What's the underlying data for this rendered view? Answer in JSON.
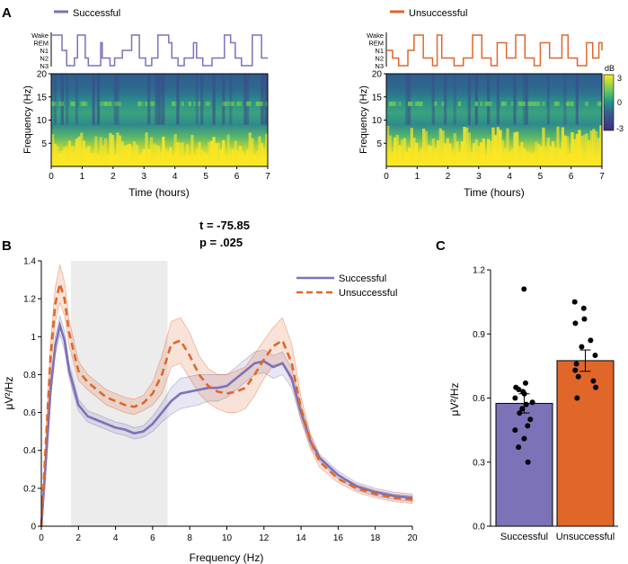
{
  "figure": {
    "panelA": {
      "letter": "A",
      "legend_successful": "Successful",
      "legend_unsuccessful": "Unsuccessful",
      "stage_labels": [
        "Wake",
        "REM",
        "N1",
        "N2",
        "N3"
      ],
      "ylabel": "Frequency (Hz)",
      "xlabel": "Time (hours)",
      "x_ticks": [
        "0",
        "1",
        "2",
        "3",
        "4",
        "5",
        "6",
        "7"
      ],
      "y_ticks": [
        "5",
        "10",
        "15",
        "20"
      ],
      "colorbar_title": "dB",
      "colorbar_ticks": [
        "3",
        "0",
        "-3"
      ]
    },
    "panelB": {
      "letter": "B",
      "stat_t": "t  = -75.85",
      "stat_p": "p = .025",
      "legend_successful": "Successful",
      "legend_unsuccessful": "Unsuccessful",
      "xlabel": "Frequency (Hz)",
      "ylabel": "μV²/Hz",
      "x_ticks": [
        "0",
        "2",
        "4",
        "6",
        "8",
        "10",
        "12",
        "14",
        "16",
        "18",
        "20"
      ],
      "y_ticks": [
        "0",
        "0.2",
        "0.4",
        "0.6",
        "0.8",
        "1",
        "1.2",
        "1.4"
      ]
    },
    "panelC": {
      "letter": "C",
      "ylabel": "μV²/Hz",
      "y_ticks": [
        "0.0",
        "0.3",
        "0.6",
        "0.9",
        "1.2"
      ],
      "x_labels": [
        "Successful",
        "Unsuccessful"
      ]
    }
  },
  "colors": {
    "successful": "#7b72b8",
    "unsuccessful": "#e0662a",
    "shade": "#ececec"
  },
  "chart_data": [
    {
      "type": "line",
      "id": "hypnogram-successful",
      "stages": [
        "Wake",
        "REM",
        "N1",
        "N2",
        "N3"
      ],
      "t": [
        0,
        0.35,
        0.5,
        0.75,
        0.85,
        1.1,
        1.2,
        1.6,
        1.65,
        1.9,
        2.05,
        2.3,
        2.6,
        2.85,
        3.05,
        3.25,
        3.45,
        3.8,
        3.9,
        4.1,
        4.3,
        4.6,
        4.7,
        4.9,
        5.2,
        5.6,
        5.8,
        5.95,
        6.15,
        6.5,
        6.8,
        7.0
      ],
      "stage_index": [
        0,
        2,
        4,
        3,
        0,
        3,
        4,
        1,
        3,
        4,
        3,
        2,
        0,
        3,
        4,
        3,
        0,
        1,
        3,
        4,
        3,
        1,
        3,
        4,
        3,
        0,
        1,
        3,
        4,
        0,
        3,
        3
      ]
    },
    {
      "type": "line",
      "id": "hypnogram-unsuccessful",
      "stages": [
        "Wake",
        "REM",
        "N1",
        "N2",
        "N3"
      ],
      "t": [
        0,
        0.2,
        0.4,
        0.7,
        0.9,
        1.2,
        1.5,
        1.65,
        1.8,
        2.2,
        2.5,
        2.8,
        3.1,
        3.4,
        3.6,
        3.9,
        4.2,
        4.5,
        4.8,
        5.0,
        5.3,
        5.7,
        5.9,
        6.2,
        6.5,
        6.7,
        6.9,
        7.0
      ],
      "stage_index": [
        2,
        3,
        4,
        2,
        0,
        3,
        4,
        0,
        3,
        4,
        3,
        0,
        3,
        4,
        1,
        3,
        0,
        3,
        4,
        1,
        3,
        0,
        3,
        4,
        1,
        3,
        1,
        2
      ]
    },
    {
      "type": "heatmap",
      "id": "spectrogram-successful",
      "xlabel": "Time (hours)",
      "ylabel": "Frequency (Hz)",
      "xlim": [
        0,
        7
      ],
      "ylim": [
        0,
        20
      ],
      "zlim": [
        -3,
        3
      ],
      "z_unit": "dB"
    },
    {
      "type": "heatmap",
      "id": "spectrogram-unsuccessful",
      "xlabel": "Time (hours)",
      "ylabel": "Frequency (Hz)",
      "xlim": [
        0,
        7
      ],
      "ylim": [
        0,
        20
      ],
      "zlim": [
        -3,
        3
      ],
      "z_unit": "dB"
    },
    {
      "type": "line",
      "id": "power-spectrum",
      "xlabel": "Frequency (Hz)",
      "ylabel": "μV²/Hz",
      "xlim": [
        0,
        20
      ],
      "ylim": [
        0,
        1.4
      ],
      "shaded_band_hz": [
        1.6,
        6.8
      ],
      "x": [
        0,
        0.25,
        0.5,
        0.75,
        1,
        1.25,
        1.5,
        2,
        2.5,
        3,
        3.5,
        4,
        4.5,
        5,
        5.5,
        6,
        6.5,
        7,
        7.5,
        8,
        8.5,
        9,
        9.5,
        10,
        10.5,
        11,
        11.5,
        12,
        12.5,
        13,
        13.5,
        14,
        14.5,
        15,
        16,
        17,
        18,
        19,
        20
      ],
      "series": [
        {
          "name": "Successful",
          "values": [
            0.0,
            0.35,
            0.72,
            0.95,
            1.06,
            0.98,
            0.82,
            0.64,
            0.58,
            0.56,
            0.54,
            0.52,
            0.51,
            0.49,
            0.5,
            0.54,
            0.6,
            0.66,
            0.7,
            0.71,
            0.72,
            0.73,
            0.73,
            0.74,
            0.78,
            0.82,
            0.86,
            0.87,
            0.84,
            0.86,
            0.78,
            0.6,
            0.45,
            0.36,
            0.27,
            0.21,
            0.18,
            0.16,
            0.15
          ],
          "ci": [
            0.0,
            0.03,
            0.05,
            0.05,
            0.05,
            0.05,
            0.04,
            0.03,
            0.03,
            0.03,
            0.03,
            0.03,
            0.03,
            0.03,
            0.03,
            0.04,
            0.05,
            0.07,
            0.08,
            0.08,
            0.08,
            0.07,
            0.07,
            0.06,
            0.06,
            0.06,
            0.06,
            0.06,
            0.06,
            0.06,
            0.05,
            0.04,
            0.03,
            0.02,
            0.02,
            0.02,
            0.02,
            0.02,
            0.02
          ]
        },
        {
          "name": "Unsuccessful",
          "values": [
            0.0,
            0.45,
            0.9,
            1.17,
            1.28,
            1.2,
            1.02,
            0.82,
            0.76,
            0.72,
            0.68,
            0.66,
            0.64,
            0.63,
            0.65,
            0.7,
            0.8,
            0.96,
            0.98,
            0.9,
            0.8,
            0.74,
            0.71,
            0.7,
            0.71,
            0.73,
            0.8,
            0.88,
            0.95,
            0.98,
            0.86,
            0.62,
            0.45,
            0.34,
            0.25,
            0.2,
            0.17,
            0.15,
            0.14
          ],
          "ci": [
            0.0,
            0.04,
            0.08,
            0.09,
            0.1,
            0.09,
            0.07,
            0.05,
            0.04,
            0.04,
            0.04,
            0.04,
            0.04,
            0.04,
            0.04,
            0.06,
            0.1,
            0.12,
            0.12,
            0.12,
            0.1,
            0.09,
            0.09,
            0.1,
            0.11,
            0.11,
            0.11,
            0.1,
            0.1,
            0.12,
            0.1,
            0.06,
            0.04,
            0.03,
            0.02,
            0.02,
            0.02,
            0.02,
            0.02
          ]
        }
      ]
    },
    {
      "type": "bar",
      "id": "group-means",
      "ylabel": "μV²/Hz",
      "ylim": [
        0,
        1.2
      ],
      "categories": [
        "Successful",
        "Unsuccessful"
      ],
      "values": [
        0.575,
        0.775
      ],
      "sem": [
        0.045,
        0.05
      ],
      "points": [
        [
          1.11,
          0.67,
          0.65,
          0.64,
          0.63,
          0.62,
          0.6,
          0.58,
          0.57,
          0.55,
          0.53,
          0.5,
          0.47,
          0.45,
          0.41,
          0.37,
          0.3
        ],
        [
          1.05,
          1.02,
          0.97,
          0.95,
          0.87,
          0.84,
          0.8,
          0.76,
          0.73,
          0.7,
          0.68,
          0.65,
          0.6
        ]
      ]
    }
  ]
}
